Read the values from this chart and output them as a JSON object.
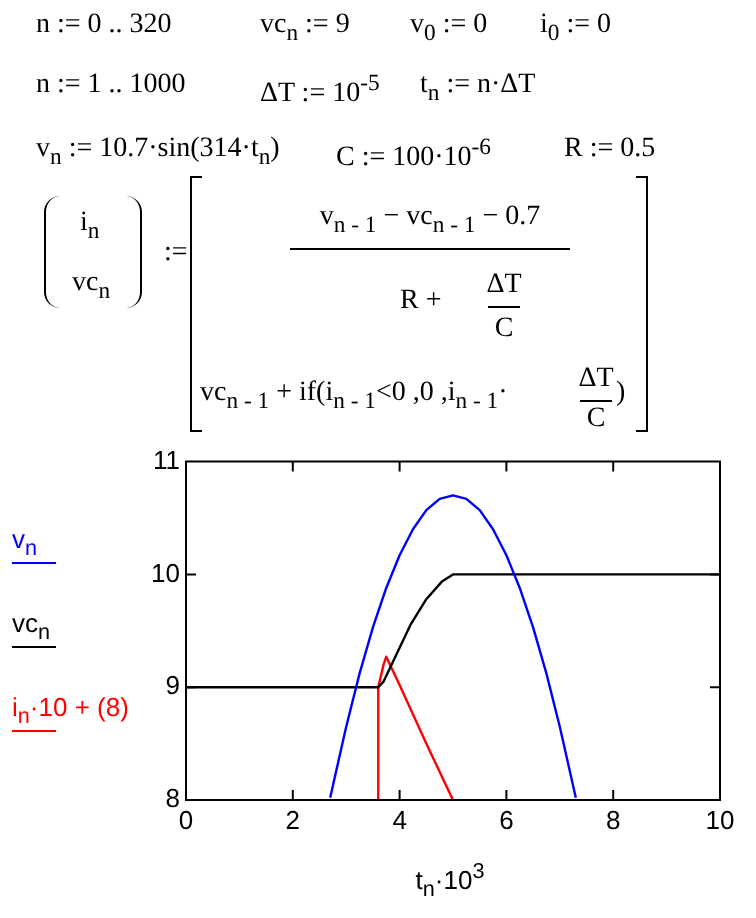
{
  "chart_data": {
    "type": "line",
    "annotations": [
      "n := 0 .. 320",
      "vc$_{n}$ := 9",
      "v$_{0}$ := 0",
      "i$_{0}$ := 0",
      "n := 1 .. 1000",
      "ΔT := 10$^{-5}$",
      "t$_{n}$ := n·ΔT",
      "v$_{n}$ := 10.7·sin(314·t$_{n}$)",
      "C := 100·10$^{-6}$",
      "R := 0.5",
      "i$_{n}$",
      "vc$_{n}$",
      ":=",
      "v$_{n - 1}$ − vc$_{n - 1}$ − 0.7",
      "R +",
      "ΔT",
      "C",
      "vc$_{n - 1}$ + if(i$_{n - 1}$<0 ,0 ,i$_{n - 1}$·",
      "ΔT",
      "C",
      ")"
    ],
    "xlabel": "t$_{n}$·10$^{3}$",
    "xlim": [
      0,
      10
    ],
    "xticks": [
      0,
      2,
      4,
      6,
      8,
      10
    ],
    "ylim": [
      8,
      11
    ],
    "yticks": [
      8,
      9,
      10,
      11
    ],
    "grid": false,
    "legend": "left",
    "series": [
      {
        "name": "v$_{n}$",
        "color": "#0000ff",
        "x": [
          2.7,
          3.0,
          3.25,
          3.5,
          3.75,
          4.0,
          4.25,
          4.5,
          4.75,
          5.0,
          5.25,
          5.5,
          5.75,
          6.0,
          6.25,
          6.5,
          6.75,
          7.0,
          7.3
        ],
        "values": [
          8.02,
          8.65,
          9.12,
          9.53,
          9.88,
          10.17,
          10.4,
          10.57,
          10.67,
          10.7,
          10.67,
          10.57,
          10.4,
          10.17,
          9.88,
          9.53,
          9.12,
          8.65,
          8.02
        ]
      },
      {
        "name": "vc$_{n}$",
        "color": "#000000",
        "x": [
          0,
          3.6,
          3.7,
          3.9,
          4.2,
          4.5,
          4.8,
          5.0,
          10
        ],
        "values": [
          9.0,
          9.0,
          9.05,
          9.25,
          9.55,
          9.78,
          9.94,
          10.0,
          10.0
        ]
      },
      {
        "name": "i$_{n}$·10 + (8)",
        "color": "#ff0000",
        "x": [
          3.6,
          3.6,
          3.7,
          3.75,
          4.0,
          4.5,
          5.0
        ],
        "values": [
          8.0,
          9.0,
          9.2,
          9.27,
          9.02,
          8.5,
          8.0
        ]
      }
    ]
  }
}
